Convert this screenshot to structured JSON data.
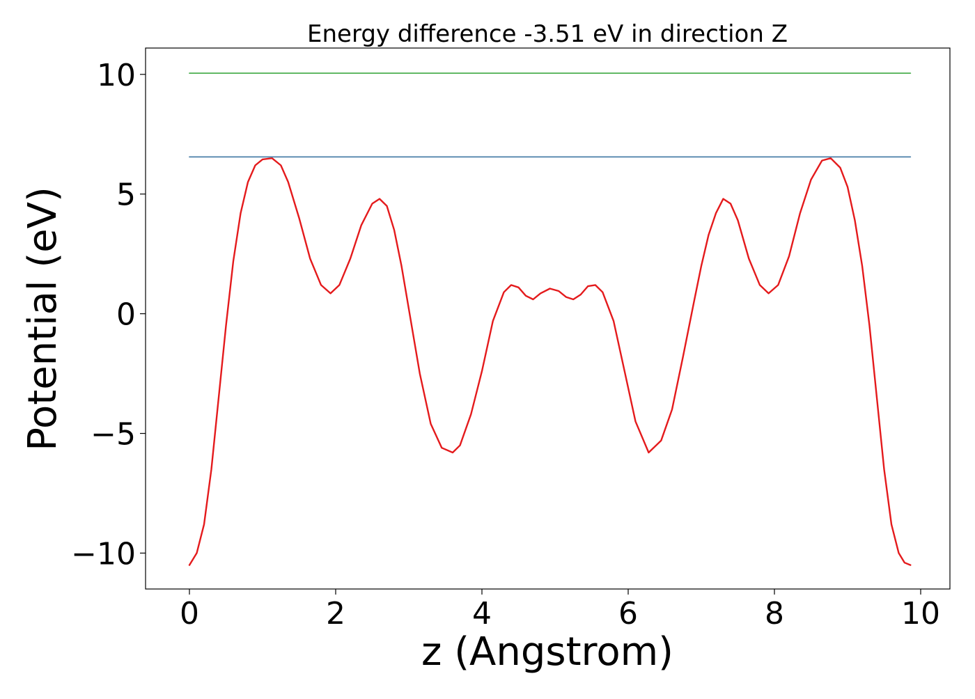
{
  "chart_data": {
    "type": "line",
    "title": "Energy difference -3.51 eV in direction Z",
    "xlabel": "z (Angstrom)",
    "ylabel": "Potential (eV)",
    "xlim": [
      -0.6,
      10.4
    ],
    "ylim": [
      -11.5,
      11.1
    ],
    "xticks": [
      0,
      2,
      4,
      6,
      8,
      10
    ],
    "xtick_labels": [
      "0",
      "2",
      "4",
      "6",
      "8",
      "10"
    ],
    "yticks": [
      10,
      5,
      0,
      -5,
      -10
    ],
    "ytick_labels": [
      "10",
      "5",
      "0",
      "−5",
      "−10"
    ],
    "grid": false,
    "series": [
      {
        "color": "#e41a1c",
        "x": [
          0.0,
          0.1,
          0.2,
          0.3,
          0.4,
          0.5,
          0.6,
          0.7,
          0.8,
          0.9,
          1.0,
          1.13,
          1.25,
          1.35,
          1.5,
          1.65,
          1.8,
          1.93,
          2.05,
          2.2,
          2.35,
          2.5,
          2.6,
          2.7,
          2.8,
          2.9,
          3.0,
          3.15,
          3.3,
          3.45,
          3.6,
          3.7,
          3.85,
          4.0,
          4.15,
          4.3,
          4.4,
          4.5,
          4.6,
          4.7,
          4.8,
          4.93,
          5.05,
          5.15,
          5.25,
          5.35,
          5.45,
          5.55,
          5.65,
          5.8,
          5.95,
          6.1,
          6.28,
          6.45,
          6.6,
          6.75,
          6.9,
          7.0,
          7.1,
          7.2,
          7.3,
          7.4,
          7.5,
          7.65,
          7.8,
          7.92,
          8.05,
          8.2,
          8.35,
          8.5,
          8.65,
          8.77,
          8.9,
          9.0,
          9.1,
          9.2,
          9.3,
          9.4,
          9.5,
          9.6,
          9.7,
          9.78,
          9.86
        ],
        "y": [
          -10.5,
          -10.0,
          -8.8,
          -6.5,
          -3.5,
          -0.5,
          2.2,
          4.2,
          5.5,
          6.2,
          6.45,
          6.5,
          6.2,
          5.5,
          4.0,
          2.3,
          1.2,
          0.85,
          1.2,
          2.3,
          3.7,
          4.6,
          4.8,
          4.5,
          3.5,
          2.0,
          0.2,
          -2.5,
          -4.6,
          -5.6,
          -5.8,
          -5.5,
          -4.2,
          -2.4,
          -0.3,
          0.9,
          1.2,
          1.1,
          0.75,
          0.6,
          0.85,
          1.05,
          0.95,
          0.7,
          0.6,
          0.8,
          1.15,
          1.2,
          0.9,
          -0.3,
          -2.4,
          -4.5,
          -5.8,
          -5.3,
          -4.0,
          -1.8,
          0.5,
          2.0,
          3.3,
          4.2,
          4.8,
          4.6,
          3.9,
          2.3,
          1.2,
          0.85,
          1.2,
          2.4,
          4.2,
          5.6,
          6.4,
          6.5,
          6.1,
          5.3,
          3.9,
          2.0,
          -0.5,
          -3.5,
          -6.5,
          -8.8,
          -10.0,
          -10.4,
          -10.5
        ]
      },
      {
        "color": "#4a7fa8",
        "x": [
          0.0,
          9.86
        ],
        "y": [
          6.55,
          6.55
        ]
      },
      {
        "color": "#4caf50",
        "x": [
          0.0,
          9.86
        ],
        "y": [
          10.05,
          10.05
        ]
      }
    ]
  }
}
